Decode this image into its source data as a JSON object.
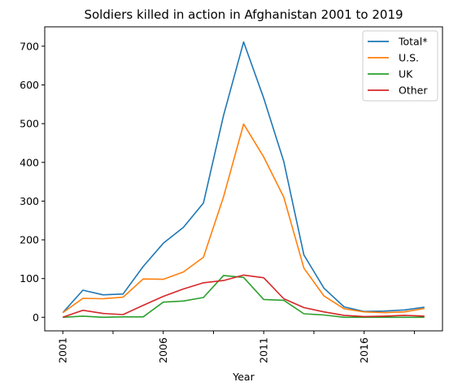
{
  "chart_data": {
    "type": "line",
    "title": "Soldiers killed in action in Afghanistan 2001 to 2019",
    "xlabel": "Year",
    "ylabel": "",
    "x": [
      2001,
      2002,
      2003,
      2004,
      2005,
      2006,
      2007,
      2008,
      2009,
      2010,
      2011,
      2012,
      2013,
      2014,
      2015,
      2016,
      2017,
      2018,
      2019
    ],
    "xlim": [
      2000.1,
      2019.9
    ],
    "ylim": [
      -35,
      750
    ],
    "xticks": [
      2001,
      2006,
      2011,
      2016
    ],
    "xticks_minor": [
      2003.5,
      2008.5,
      2013.5,
      2018.5
    ],
    "xtick_labels": [
      "2001",
      "2006",
      "2011",
      "2016"
    ],
    "yticks": [
      0,
      100,
      200,
      300,
      400,
      500,
      600,
      700
    ],
    "ytick_labels": [
      "0",
      "100",
      "200",
      "300",
      "400",
      "500",
      "600",
      "700"
    ],
    "grid": false,
    "legend_position": "upper right",
    "series": [
      {
        "name": "Total*",
        "color": "#1f77b4",
        "values": [
          12,
          70,
          58,
          60,
          131,
          191,
          232,
          295,
          521,
          711,
          566,
          402,
          161,
          75,
          27,
          15,
          16,
          19,
          26
        ]
      },
      {
        "name": "U.S.",
        "color": "#ff7f0e",
        "values": [
          12,
          49,
          48,
          52,
          99,
          98,
          117,
          155,
          311,
          499,
          414,
          310,
          127,
          55,
          22,
          14,
          12,
          14,
          23
        ]
      },
      {
        "name": "UK",
        "color": "#2ca02c",
        "values": [
          0,
          3,
          0,
          1,
          1,
          39,
          42,
          51,
          108,
          103,
          46,
          44,
          9,
          6,
          0,
          0,
          0,
          0,
          0
        ]
      },
      {
        "name": "Other",
        "color": "#d62728",
        "values": [
          0,
          18,
          10,
          7,
          31,
          54,
          73,
          89,
          95,
          109,
          102,
          48,
          25,
          14,
          5,
          2,
          3,
          5,
          3
        ]
      }
    ]
  }
}
